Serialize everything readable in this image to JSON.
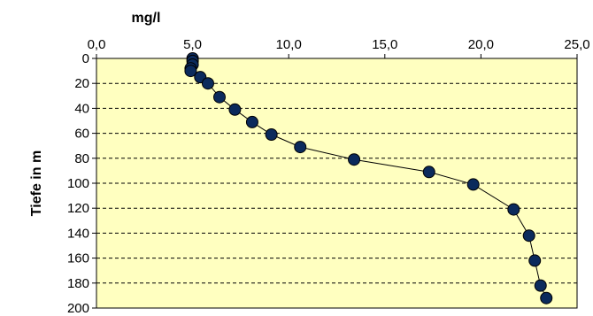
{
  "chart_data": {
    "type": "scatter",
    "xlabel": "mg/l",
    "ylabel": "Tiefe in m",
    "x_axis_position": "top",
    "y_axis_inverted": true,
    "xlim": [
      0,
      25
    ],
    "ylim": [
      0,
      200
    ],
    "x_ticks": [
      "0,0",
      "5,0",
      "10,0",
      "15,0",
      "20,0",
      "25,0"
    ],
    "y_ticks": [
      "0",
      "20",
      "40",
      "60",
      "80",
      "100",
      "120",
      "140",
      "160",
      "180",
      "200"
    ],
    "grid": "horizontal-dashed",
    "plot_background": "#ffffc0",
    "marker_fill": "#0b2a5c",
    "marker_stroke": "#000000",
    "line_color": "#000000",
    "series": [
      {
        "points": [
          {
            "x": 5.0,
            "y": 0
          },
          {
            "x": 5.0,
            "y": 2
          },
          {
            "x": 5.0,
            "y": 5
          },
          {
            "x": 4.9,
            "y": 8
          },
          {
            "x": 4.9,
            "y": 10
          },
          {
            "x": 5.4,
            "y": 15
          },
          {
            "x": 5.8,
            "y": 20
          },
          {
            "x": 6.4,
            "y": 31
          },
          {
            "x": 7.2,
            "y": 41
          },
          {
            "x": 8.1,
            "y": 51
          },
          {
            "x": 9.1,
            "y": 61
          },
          {
            "x": 10.6,
            "y": 71
          },
          {
            "x": 13.4,
            "y": 81
          },
          {
            "x": 17.3,
            "y": 91
          },
          {
            "x": 19.6,
            "y": 101
          },
          {
            "x": 21.7,
            "y": 121
          },
          {
            "x": 22.5,
            "y": 142
          },
          {
            "x": 22.8,
            "y": 162
          },
          {
            "x": 23.1,
            "y": 182
          },
          {
            "x": 23.4,
            "y": 192
          }
        ]
      }
    ]
  }
}
